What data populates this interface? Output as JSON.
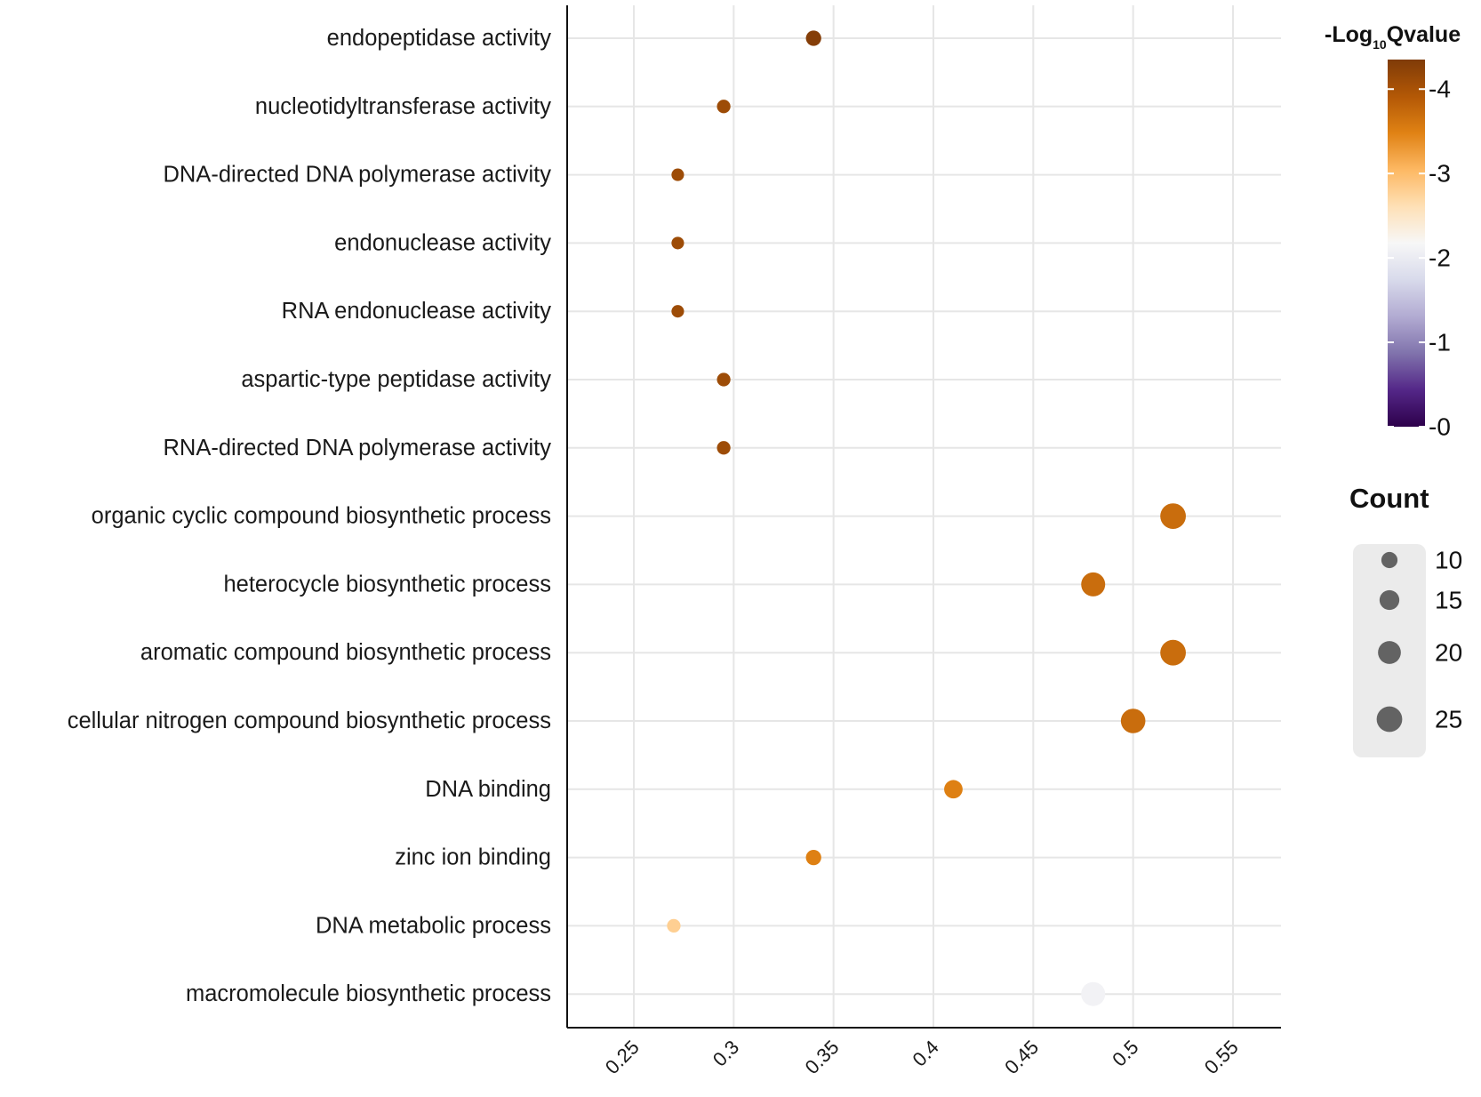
{
  "chart_data": {
    "type": "scatter",
    "title": "",
    "xlabel": "",
    "ylabel": "",
    "xlim": [
      0.22,
      0.58
    ],
    "x_ticks": [
      "0.25",
      "0.3",
      "0.35",
      "0.4",
      "0.45",
      "0.5",
      "0.55"
    ],
    "categories": [
      "endopeptidase activity",
      "nucleotidyltransferase activity",
      "DNA-directed DNA polymerase activity",
      "endonuclease activity",
      "RNA endonuclease activity",
      "aspartic-type peptidase activity",
      "RNA-directed DNA polymerase activity",
      "organic cyclic compound biosynthetic process",
      "heterocycle biosynthetic process",
      "aromatic compound biosynthetic process",
      "cellular nitrogen compound biosynthetic process",
      "DNA binding",
      "zinc ion binding",
      "DNA metabolic process",
      "macromolecule biosynthetic process"
    ],
    "points": [
      {
        "term": "endopeptidase activity",
        "x": 0.34,
        "count": 9,
        "neg_log10_q": 4.3
      },
      {
        "term": "nucleotidyltransferase activity",
        "x": 0.295,
        "count": 7,
        "neg_log10_q": 4.1
      },
      {
        "term": "DNA-directed DNA polymerase activity",
        "x": 0.272,
        "count": 6,
        "neg_log10_q": 4.1
      },
      {
        "term": "endonuclease activity",
        "x": 0.272,
        "count": 6,
        "neg_log10_q": 4.1
      },
      {
        "term": "RNA endonuclease activity",
        "x": 0.272,
        "count": 6,
        "neg_log10_q": 4.1
      },
      {
        "term": "aspartic-type peptidase activity",
        "x": 0.295,
        "count": 7,
        "neg_log10_q": 4.1
      },
      {
        "term": "RNA-directed DNA polymerase activity",
        "x": 0.295,
        "count": 7,
        "neg_log10_q": 4.1
      },
      {
        "term": "organic cyclic compound biosynthetic process",
        "x": 0.52,
        "count": 25,
        "neg_log10_q": 3.7
      },
      {
        "term": "heterocycle biosynthetic process",
        "x": 0.48,
        "count": 22,
        "neg_log10_q": 3.7
      },
      {
        "term": "aromatic compound biosynthetic process",
        "x": 0.52,
        "count": 25,
        "neg_log10_q": 3.7
      },
      {
        "term": "cellular nitrogen compound biosynthetic process",
        "x": 0.5,
        "count": 23,
        "neg_log10_q": 3.7
      },
      {
        "term": "DNA binding",
        "x": 0.41,
        "count": 13,
        "neg_log10_q": 3.5
      },
      {
        "term": "zinc ion binding",
        "x": 0.34,
        "count": 9,
        "neg_log10_q": 3.5
      },
      {
        "term": "DNA metabolic process",
        "x": 0.27,
        "count": 7,
        "neg_log10_q": 2.8
      },
      {
        "term": "macromolecule biosynthetic process",
        "x": 0.48,
        "count": 22,
        "neg_log10_q": 2.1
      }
    ],
    "color_legend": {
      "title": "-Log",
      "title_subscript": "10",
      "title_suffix": "Qvalue",
      "range": [
        0,
        4.35
      ],
      "ticks": [
        "0",
        "1",
        "2",
        "3",
        "4"
      ],
      "colors": [
        "#2d004b",
        "#542788",
        "#8073ac",
        "#b2abd2",
        "#d8daeb",
        "#f7f7f7",
        "#fee0b6",
        "#fdb863",
        "#e08214",
        "#b35806",
        "#7f3b08"
      ]
    },
    "size_legend": {
      "title": "Count",
      "values": [
        10,
        15,
        20,
        25
      ],
      "labels": [
        "10",
        "15",
        "20",
        "25"
      ],
      "key_color": "#636363",
      "key_background": "#ebebeb"
    },
    "grid": true
  }
}
